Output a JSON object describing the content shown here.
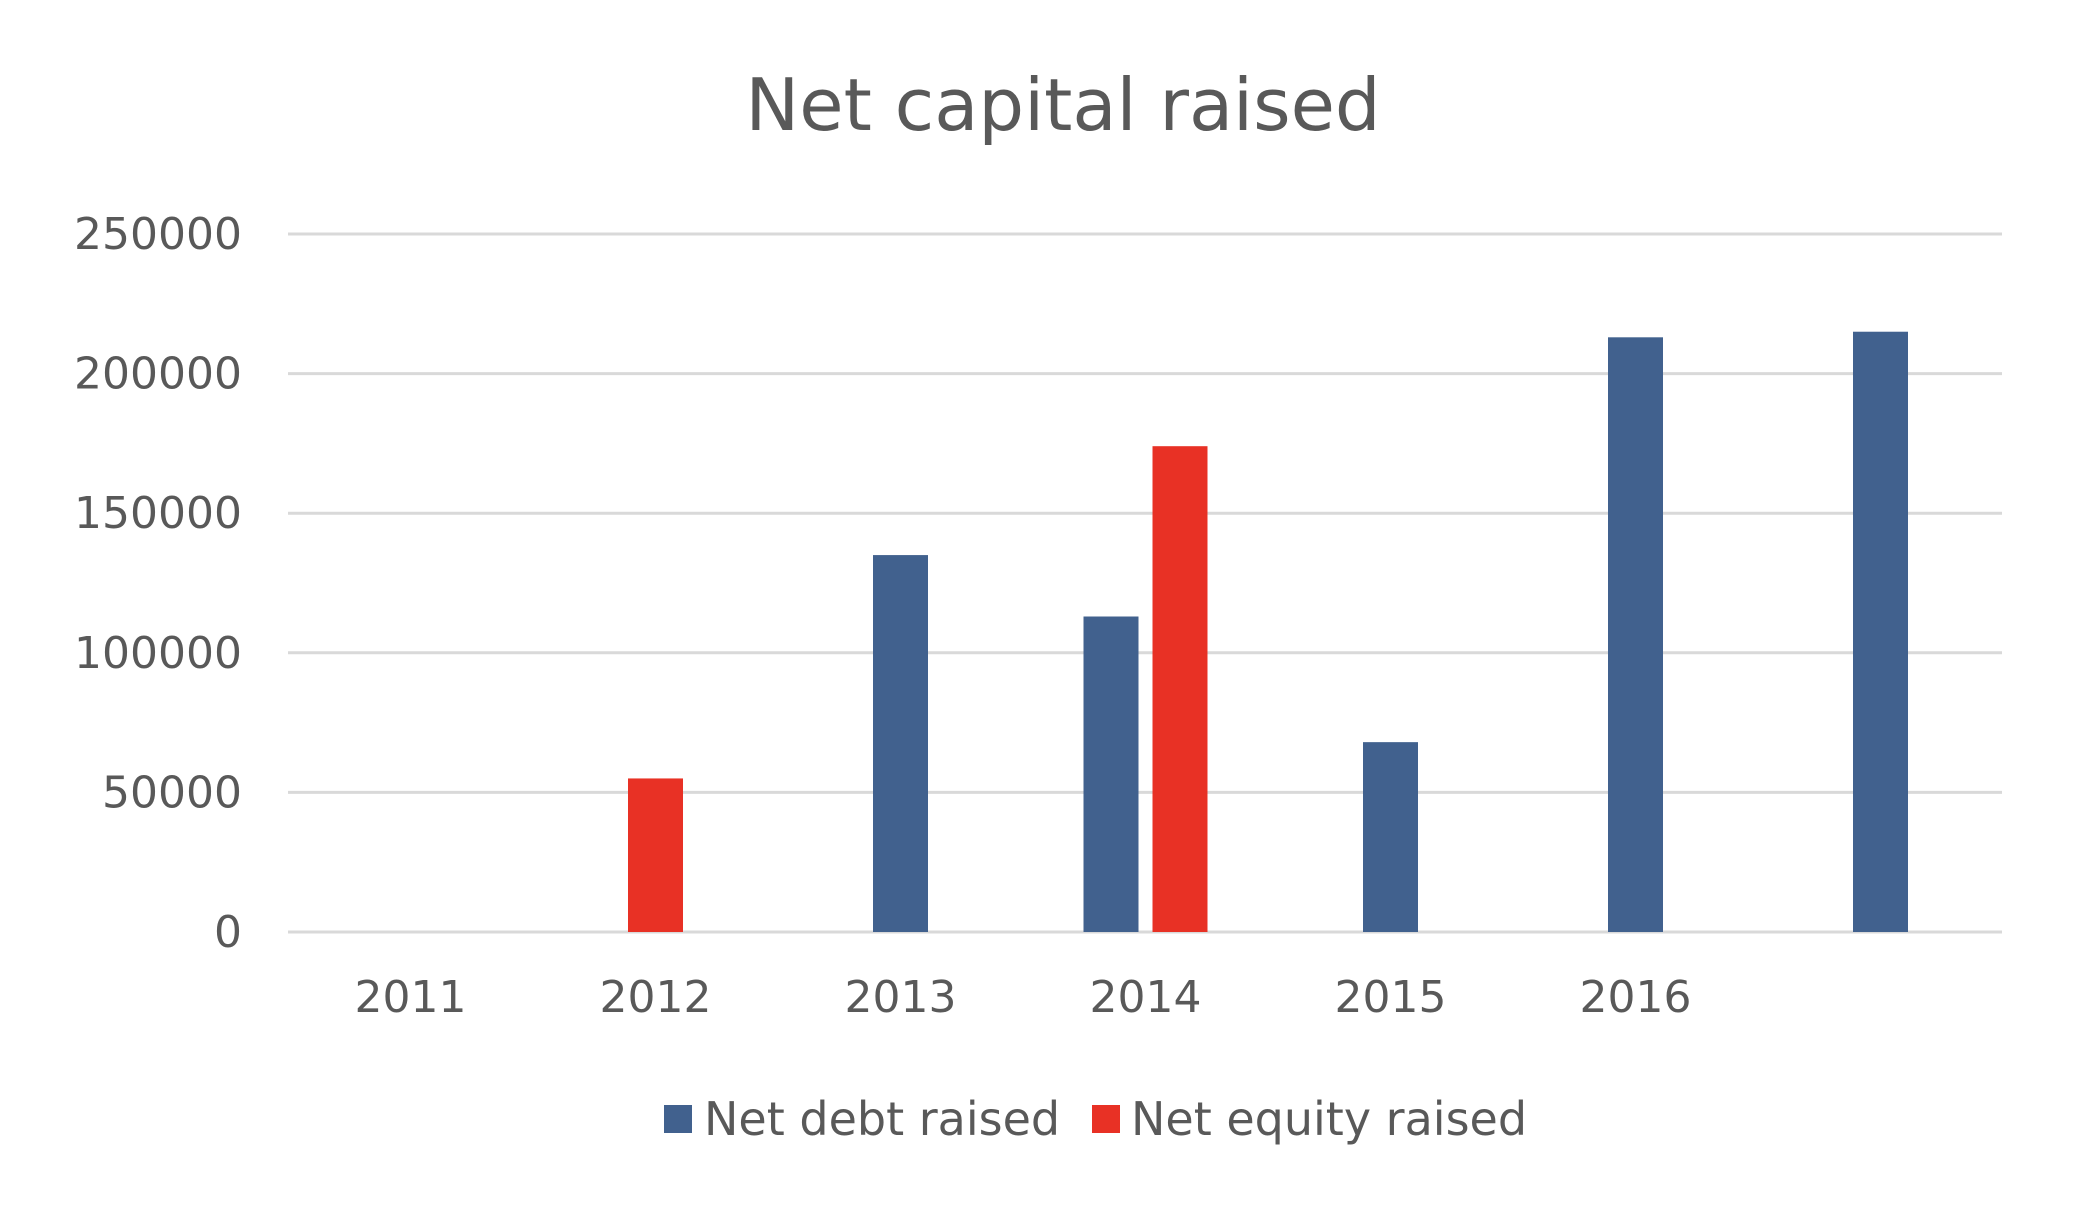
{
  "chart_data": {
    "type": "bar",
    "title": "Net capital raised",
    "xlabel": "",
    "ylabel": "",
    "categories": [
      "2011",
      "2012",
      "2013",
      "2014",
      "2015",
      "2016",
      ""
    ],
    "series": [
      {
        "name": "Net debt raised",
        "color": "#41618e",
        "values": [
          null,
          null,
          135000,
          113000,
          68000,
          213000,
          215000
        ]
      },
      {
        "name": "Net equity raised",
        "color": "#e83125",
        "values": [
          null,
          55000,
          null,
          174000,
          null,
          null,
          null
        ]
      }
    ],
    "ylim": [
      0,
      250000
    ],
    "yticks": [
      "0",
      "50000",
      "100000",
      "150000",
      "200000",
      "250000"
    ],
    "grid": true,
    "gridline_color": "#d9d9d9",
    "legend_position": "bottom"
  }
}
